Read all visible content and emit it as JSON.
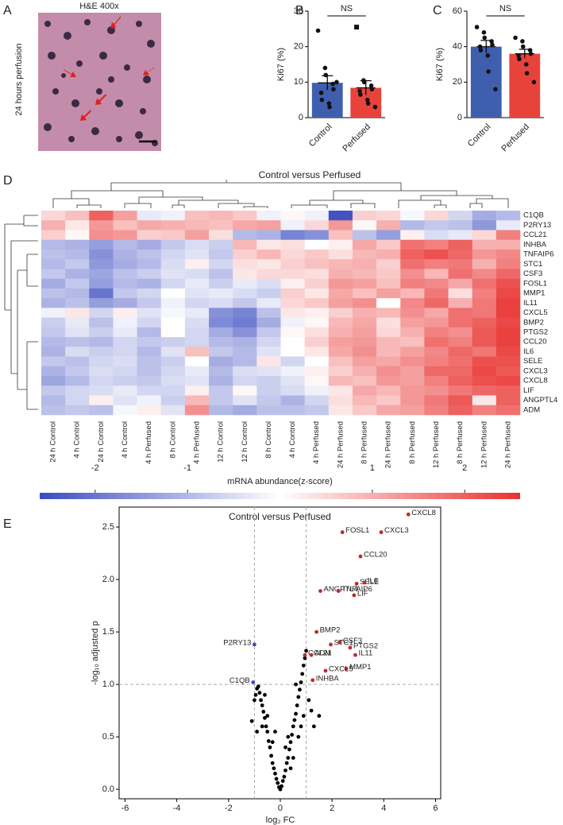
{
  "image_panel": {
    "panel": "A",
    "title": "H&E  400x",
    "side_label": "24 hours perfusion"
  },
  "chart_data": [
    {
      "type": "bar",
      "panel": "B",
      "ylabel": "Ki67 (%)",
      "annotation": "NS",
      "categories": [
        "Control",
        "Perfused"
      ],
      "colors": [
        "#3f5fae",
        "#e8433b"
      ],
      "markers": [
        "circle",
        "square"
      ],
      "values": [
        9.8,
        8.4
      ],
      "errors": [
        2.0,
        2.0
      ],
      "points": [
        [
          24.5,
          14,
          12,
          9.5,
          8,
          7,
          5,
          4,
          3,
          10
        ],
        [
          25.5,
          10.5,
          10,
          9,
          8,
          7.5,
          6.5,
          5,
          4,
          3
        ]
      ],
      "ylim": [
        0,
        30
      ],
      "yticks": [
        0,
        10,
        20,
        30
      ]
    },
    {
      "type": "bar",
      "panel": "C",
      "ylabel": "Ki67 (%)",
      "annotation": "NS",
      "categories": [
        "Control",
        "Perfused"
      ],
      "colors": [
        "#3f5fae",
        "#e8433b"
      ],
      "markers": [
        "circle",
        "circle"
      ],
      "values": [
        40,
        36
      ],
      "errors": [
        3.5,
        2.5
      ],
      "points": [
        [
          51,
          48,
          45,
          43,
          41,
          40,
          38,
          35,
          26,
          16
        ],
        [
          45,
          43,
          40,
          38,
          36,
          35,
          33,
          30,
          25,
          20
        ]
      ],
      "ylim": [
        0,
        60
      ],
      "yticks": [
        0,
        20,
        40,
        60
      ]
    },
    {
      "type": "heatmap",
      "panel": "D",
      "title": "Control versus Perfused",
      "colorbar_label": "mRNA abundance(z-score)",
      "colors": [
        "#3b4cc0",
        "#ffffff",
        "#e8312f"
      ],
      "zlim": [
        -2.6,
        2.6
      ],
      "zticks": [
        -2,
        -1,
        1,
        2
      ],
      "columns": [
        "24 h Control",
        "4 h Control",
        "24 h Control",
        "4 h Control",
        "4 h Perfused",
        "8 h Control",
        "4 h Perfused",
        "12 h Control",
        "12 h Control",
        "8 h Control",
        "4 h Control",
        "4 h Perfused",
        "24 h Perfused",
        "8 h Perfused",
        "24 h Perfused",
        "8 h Perfused",
        "12 h Perfused",
        "8 h Perfused",
        "12 h Perfused",
        "24 h Perfused"
      ],
      "rows": [
        "C1QB",
        "P2RY13",
        "CCL21",
        "INHBA",
        "TNFAIP6",
        "STC1",
        "CSF3",
        "FOSL1",
        "MMP1",
        "IL11",
        "CXCL5",
        "BMP2",
        "PTGS2",
        "CCL20",
        "IL6",
        "SELE",
        "CXCL3",
        "CXCL8",
        "LIF",
        "ANGPTL4",
        "ADM"
      ],
      "values": [
        [
          0.5,
          0.8,
          2.0,
          1.2,
          -0.3,
          -0.2,
          0.8,
          0.9,
          0.7,
          -0.2,
          0.1,
          -0.2,
          -2.5,
          0.6,
          0.5,
          -0.1,
          0.5,
          -0.6,
          -1.2,
          -1.0
        ],
        [
          1.0,
          0.3,
          1.3,
          0.8,
          1.1,
          1.0,
          0.9,
          0.8,
          1.1,
          1.2,
          -0.2,
          0.5,
          1.3,
          0.1,
          1.0,
          -1.0,
          -0.8,
          -0.9,
          -1.5,
          -0.3
        ],
        [
          0.6,
          0.1,
          1.4,
          1.3,
          0.6,
          0.7,
          1.2,
          0.4,
          -1.0,
          -1.1,
          -1.8,
          -1.6,
          0.8,
          -0.9,
          -1.4,
          0.2,
          -0.5,
          -0.3,
          0.5,
          1.6
        ],
        [
          -1.0,
          -1.1,
          -1.4,
          -1.0,
          -1.2,
          -0.8,
          -0.5,
          -0.7,
          0.9,
          0.3,
          0.4,
          0.0,
          0.2,
          1.1,
          0.7,
          1.8,
          1.6,
          2.0,
          1.0,
          1.0
        ],
        [
          -0.9,
          -1.0,
          -1.6,
          -1.1,
          -0.9,
          -0.6,
          -0.4,
          -0.8,
          0.6,
          0.9,
          0.5,
          0.7,
          0.4,
          0.9,
          1.0,
          2.0,
          2.2,
          1.9,
          1.3,
          1.5
        ],
        [
          -1.0,
          -0.8,
          -1.5,
          -1.2,
          -1.0,
          -0.5,
          0.2,
          -0.6,
          0.4,
          0.3,
          0.6,
          0.8,
          0.9,
          1.0,
          0.6,
          1.8,
          1.6,
          1.7,
          1.0,
          1.6
        ],
        [
          -0.8,
          -1.1,
          -1.3,
          -0.9,
          -0.7,
          -0.4,
          -0.5,
          -0.9,
          0.3,
          0.5,
          0.5,
          0.4,
          1.0,
          0.9,
          0.7,
          1.4,
          0.9,
          1.8,
          1.5,
          1.9
        ],
        [
          -1.2,
          -0.8,
          -1.4,
          -1.0,
          -1.1,
          -0.6,
          -0.3,
          -0.7,
          -0.3,
          -0.5,
          0.2,
          0.6,
          1.3,
          1.2,
          0.8,
          1.6,
          1.5,
          1.1,
          1.8,
          2.2
        ],
        [
          -0.9,
          -1.0,
          -2.0,
          -0.8,
          -0.6,
          0.0,
          -0.4,
          -0.3,
          -0.5,
          -0.7,
          0.6,
          0.3,
          1.1,
          0.8,
          1.2,
          0.9,
          1.7,
          0.4,
          1.6,
          2.3
        ],
        [
          -1.1,
          -0.9,
          -1.4,
          -1.2,
          -0.8,
          -0.2,
          -0.6,
          -0.5,
          -0.8,
          -0.3,
          0.5,
          0.7,
          1.2,
          1.4,
          0.0,
          1.5,
          1.9,
          1.0,
          1.7,
          2.4
        ],
        [
          -0.2,
          0.3,
          -0.6,
          0.2,
          -0.4,
          -0.1,
          -0.3,
          -1.6,
          -1.8,
          -0.9,
          0.3,
          0.2,
          0.6,
          1.0,
          0.9,
          1.4,
          1.1,
          1.8,
          1.7,
          2.4
        ],
        [
          -0.7,
          -0.3,
          -0.9,
          -0.2,
          -0.6,
          0.0,
          -0.5,
          -1.7,
          -1.9,
          -1.2,
          -0.2,
          0.1,
          0.9,
          1.1,
          0.4,
          1.2,
          1.3,
          1.8,
          2.0,
          2.3
        ],
        [
          -0.8,
          -0.4,
          -0.7,
          -0.3,
          -1.0,
          0.0,
          -0.6,
          -1.2,
          -1.6,
          -0.8,
          0.1,
          0.4,
          1.0,
          1.2,
          0.5,
          1.0,
          1.6,
          1.4,
          2.1,
          2.4
        ],
        [
          -1.0,
          -0.9,
          -1.0,
          -0.6,
          -0.8,
          -0.7,
          -0.6,
          -1.0,
          -1.1,
          -0.6,
          0.0,
          0.6,
          1.2,
          1.3,
          0.9,
          0.8,
          1.8,
          1.6,
          2.1,
          2.4
        ],
        [
          -1.1,
          -0.5,
          -0.7,
          -0.6,
          -1.0,
          -0.4,
          0.8,
          -0.8,
          -1.0,
          -0.4,
          0.0,
          0.3,
          1.1,
          1.4,
          0.9,
          1.2,
          1.5,
          1.9,
          1.7,
          2.3
        ],
        [
          -0.8,
          -0.9,
          -0.6,
          -0.5,
          -0.9,
          -0.7,
          0.0,
          -1.2,
          -1.0,
          0.3,
          -0.6,
          0.0,
          0.8,
          1.2,
          1.1,
          1.4,
          1.6,
          1.8,
          2.2,
          2.2
        ],
        [
          -1.1,
          -0.8,
          -0.5,
          -0.6,
          -0.9,
          -0.6,
          -0.3,
          -1.0,
          -0.5,
          -0.4,
          -0.2,
          0.2,
          0.6,
          1.0,
          1.4,
          1.2,
          1.9,
          1.9,
          2.3,
          2.1
        ],
        [
          -1.3,
          -1.0,
          -0.6,
          -0.7,
          -0.8,
          -0.5,
          -0.4,
          -1.1,
          -0.6,
          -0.7,
          -0.4,
          0.1,
          0.9,
          0.8,
          1.3,
          1.2,
          1.6,
          2.0,
          2.2,
          2.3
        ],
        [
          -0.8,
          -0.6,
          -0.5,
          -0.3,
          -0.6,
          -0.6,
          0.2,
          -0.8,
          0.1,
          -0.7,
          -0.5,
          -0.2,
          0.3,
          1.1,
          0.9,
          1.3,
          1.4,
          1.7,
          1.9,
          2.0
        ],
        [
          -1.0,
          -0.6,
          0.2,
          -0.4,
          -0.2,
          -0.7,
          0.9,
          -0.8,
          -0.4,
          -0.8,
          -1.1,
          -0.6,
          0.4,
          0.9,
          0.7,
          1.3,
          1.7,
          2.1,
          0.3,
          2.0
        ],
        [
          -0.9,
          -0.8,
          -0.9,
          -0.1,
          0.2,
          -0.4,
          1.4,
          -1.0,
          -1.2,
          -0.9,
          -0.9,
          -0.8,
          0.3,
          0.7,
          1.1,
          1.2,
          1.6,
          2.0,
          1.6,
          1.8
        ]
      ]
    },
    {
      "type": "scatter",
      "panel": "E",
      "title": "Control versus Perfused",
      "xlabel": "log₂ FC",
      "ylabel": "-log₁₀ adjusted p",
      "xlim": [
        -6.23,
        6.2
      ],
      "ylim": [
        -0.09,
        2.69
      ],
      "xticks": [
        -6,
        -4,
        -2,
        0,
        2,
        4,
        6
      ],
      "yticks": [
        {
          "value": 0,
          "label": "0.0"
        },
        0.5,
        {
          "value": 1,
          "label": "1.0"
        },
        1.5,
        {
          "value": 2,
          "label": "2.0"
        },
        2.5
      ],
      "vlines": [
        -1,
        1
      ],
      "hline": 1,
      "series": [
        {
          "color": "#000000",
          "x": [
            0.0,
            0.05,
            -0.05,
            0.1,
            -0.1,
            0.15,
            -0.15,
            0.2,
            -0.2,
            0.25,
            -0.25,
            0.3,
            -0.3,
            0.35,
            -0.35,
            0.4,
            -0.4,
            0.45,
            -0.45,
            0.5,
            -0.5,
            0.55,
            -0.55,
            0.6,
            -0.6,
            0.65,
            -0.65,
            0.7,
            -0.7,
            0.75,
            -0.75,
            0.8,
            -0.8,
            0.85,
            -0.85,
            0.9,
            -0.9,
            0.95,
            -0.95,
            1.0,
            -1.0,
            0.3,
            -0.3,
            0.5,
            -0.5,
            0.7,
            -0.7,
            0.9,
            -0.9,
            0.6,
            -0.6,
            0.4,
            0.8,
            1.1,
            1.2,
            1.3,
            -1.1,
            1.5,
            0.2,
            -0.2
          ],
          "values": [
            0.0,
            0.03,
            0.02,
            0.08,
            0.06,
            0.12,
            0.1,
            0.18,
            0.15,
            0.25,
            0.2,
            0.3,
            0.25,
            0.38,
            0.32,
            0.45,
            0.4,
            0.52,
            0.46,
            0.6,
            0.55,
            0.66,
            0.6,
            0.72,
            0.68,
            0.8,
            0.74,
            0.88,
            0.8,
            0.95,
            0.85,
            1.02,
            0.92,
            1.1,
            0.98,
            1.18,
            0.96,
            1.25,
            0.9,
            1.32,
            0.85,
            0.5,
            0.45,
            0.3,
            0.7,
            0.5,
            0.6,
            0.7,
            0.55,
            1.0,
            0.9,
            0.2,
            0.6,
            0.85,
            0.75,
            0.6,
            0.65,
            0.7,
            0.4,
            0.55
          ]
        },
        {
          "color": "#c0282d",
          "labels": [
            "CXCL8",
            "FOSL1",
            "CXCL3",
            "CCL20",
            "SELE",
            "IL6",
            "ANGPTL4",
            "TNFAIP6",
            "LIF",
            "BMP2",
            "STC1",
            "CSF3",
            "PTGS2",
            "CCL21",
            "ADM",
            "IL11",
            "MMP1",
            "CXCL5",
            "INHBA"
          ],
          "x": [
            4.95,
            2.4,
            3.9,
            3.1,
            2.95,
            3.25,
            1.55,
            2.25,
            2.85,
            1.4,
            1.95,
            2.3,
            2.7,
            0.95,
            1.2,
            2.9,
            2.55,
            1.75,
            1.25
          ],
          "values": [
            2.62,
            2.45,
            2.45,
            2.22,
            1.96,
            1.97,
            1.89,
            1.89,
            1.85,
            1.5,
            1.38,
            1.4,
            1.35,
            1.28,
            1.28,
            1.28,
            1.15,
            1.13,
            1.04
          ]
        },
        {
          "color": "#3b4cc0",
          "labels": [
            "P2RY13",
            "C1QB"
          ],
          "x": [
            -1.0,
            -1.05
          ],
          "values": [
            1.38,
            1.02
          ]
        }
      ]
    }
  ]
}
